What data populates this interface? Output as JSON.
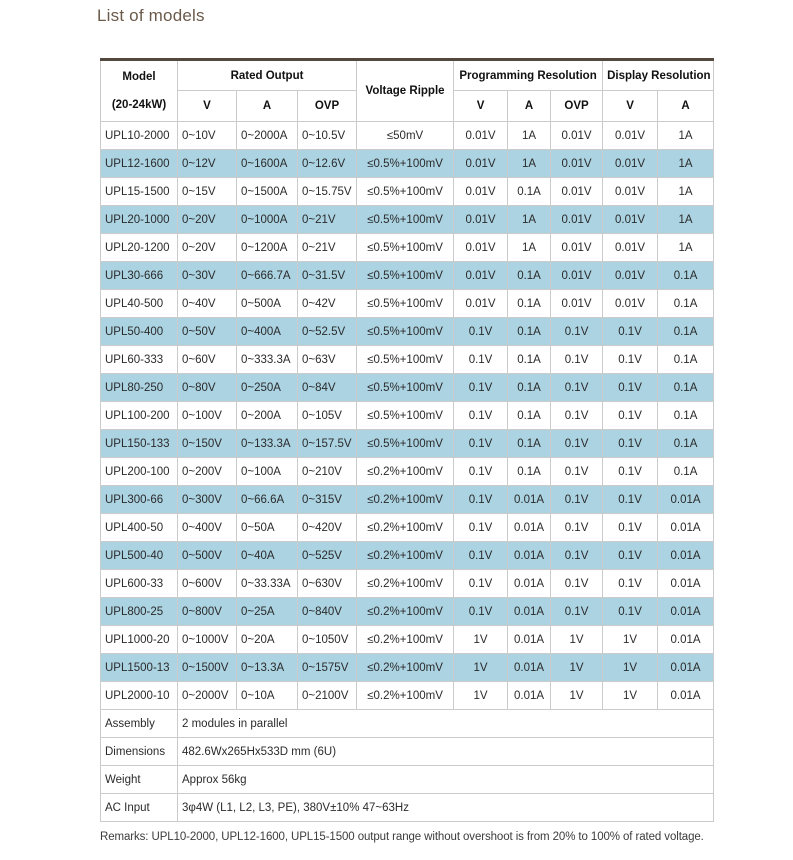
{
  "page": {
    "title": "List of models",
    "remarks": "Remarks: UPL10-2000, UPL12-1600, UPL15-1500 output range without overshoot is from 20% to 100% of rated voltage."
  },
  "colors": {
    "accent_row": "#abd3e2",
    "title": "#6b5a4a",
    "table_top_border": "#52483e",
    "cell_border": "#cbcbcb"
  },
  "table": {
    "header": {
      "model_line1": "Model",
      "model_line2": "(20-24kW)",
      "groups": [
        {
          "label": "Rated Output"
        },
        {
          "label": "Voltage Ripple"
        },
        {
          "label": "Programming Resolution"
        },
        {
          "label": "Display Resolution"
        }
      ],
      "subheaders": [
        "V",
        "A",
        "OVP",
        "V",
        "A",
        "OVP",
        "V",
        "A"
      ]
    },
    "rows": [
      {
        "model": "UPL10-2000",
        "v": "0~10V",
        "a": "0~2000A",
        "ovp": "0~10.5V",
        "ripple": "≤50mV",
        "pv": "0.01V",
        "pa": "1A",
        "povp": "0.01V",
        "dv": "0.01V",
        "da": "1A",
        "highlight": false
      },
      {
        "model": "UPL12-1600",
        "v": "0~12V",
        "a": "0~1600A",
        "ovp": "0~12.6V",
        "ripple": "≤0.5%+100mV",
        "pv": "0.01V",
        "pa": "1A",
        "povp": "0.01V",
        "dv": "0.01V",
        "da": "1A",
        "highlight": true
      },
      {
        "model": "UPL15-1500",
        "v": "0~15V",
        "a": "0~1500A",
        "ovp": "0~15.75V",
        "ripple": "≤0.5%+100mV",
        "pv": "0.01V",
        "pa": "0.1A",
        "povp": "0.01V",
        "dv": "0.01V",
        "da": "1A",
        "highlight": false
      },
      {
        "model": "UPL20-1000",
        "v": "0~20V",
        "a": "0~1000A",
        "ovp": "0~21V",
        "ripple": "≤0.5%+100mV",
        "pv": "0.01V",
        "pa": "1A",
        "povp": "0.01V",
        "dv": "0.01V",
        "da": "1A",
        "highlight": true
      },
      {
        "model": "UPL20-1200",
        "v": "0~20V",
        "a": "0~1200A",
        "ovp": "0~21V",
        "ripple": "≤0.5%+100mV",
        "pv": "0.01V",
        "pa": "1A",
        "povp": "0.01V",
        "dv": "0.01V",
        "da": "1A",
        "highlight": false
      },
      {
        "model": "UPL30-666",
        "v": "0~30V",
        "a": "0~666.7A",
        "ovp": "0~31.5V",
        "ripple": "≤0.5%+100mV",
        "pv": "0.01V",
        "pa": "0.1A",
        "povp": "0.01V",
        "dv": "0.01V",
        "da": "0.1A",
        "highlight": true
      },
      {
        "model": "UPL40-500",
        "v": "0~40V",
        "a": "0~500A",
        "ovp": "0~42V",
        "ripple": "≤0.5%+100mV",
        "pv": "0.01V",
        "pa": "0.1A",
        "povp": "0.01V",
        "dv": "0.01V",
        "da": "0.1A",
        "highlight": false
      },
      {
        "model": "UPL50-400",
        "v": "0~50V",
        "a": "0~400A",
        "ovp": "0~52.5V",
        "ripple": "≤0.5%+100mV",
        "pv": "0.1V",
        "pa": "0.1A",
        "povp": "0.1V",
        "dv": "0.1V",
        "da": "0.1A",
        "highlight": true
      },
      {
        "model": "UPL60-333",
        "v": "0~60V",
        "a": "0~333.3A",
        "ovp": "0~63V",
        "ripple": "≤0.5%+100mV",
        "pv": "0.1V",
        "pa": "0.1A",
        "povp": "0.1V",
        "dv": "0.1V",
        "da": "0.1A",
        "highlight": false
      },
      {
        "model": "UPL80-250",
        "v": "0~80V",
        "a": "0~250A",
        "ovp": "0~84V",
        "ripple": "≤0.5%+100mV",
        "pv": "0.1V",
        "pa": "0.1A",
        "povp": "0.1V",
        "dv": "0.1V",
        "da": "0.1A",
        "highlight": true
      },
      {
        "model": "UPL100-200",
        "v": "0~100V",
        "a": "0~200A",
        "ovp": "0~105V",
        "ripple": "≤0.5%+100mV",
        "pv": "0.1V",
        "pa": "0.1A",
        "povp": "0.1V",
        "dv": "0.1V",
        "da": "0.1A",
        "highlight": false
      },
      {
        "model": "UPL150-133",
        "v": "0~150V",
        "a": "0~133.3A",
        "ovp": "0~157.5V",
        "ripple": "≤0.5%+100mV",
        "pv": "0.1V",
        "pa": "0.1A",
        "povp": "0.1V",
        "dv": "0.1V",
        "da": "0.1A",
        "highlight": true
      },
      {
        "model": "UPL200-100",
        "v": "0~200V",
        "a": "0~100A",
        "ovp": "0~210V",
        "ripple": "≤0.2%+100mV",
        "pv": "0.1V",
        "pa": "0.1A",
        "povp": "0.1V",
        "dv": "0.1V",
        "da": "0.1A",
        "highlight": false
      },
      {
        "model": "UPL300-66",
        "v": "0~300V",
        "a": "0~66.6A",
        "ovp": "0~315V",
        "ripple": "≤0.2%+100mV",
        "pv": "0.1V",
        "pa": "0.01A",
        "povp": "0.1V",
        "dv": "0.1V",
        "da": "0.01A",
        "highlight": true
      },
      {
        "model": "UPL400-50",
        "v": "0~400V",
        "a": "0~50A",
        "ovp": "0~420V",
        "ripple": "≤0.2%+100mV",
        "pv": "0.1V",
        "pa": "0.01A",
        "povp": "0.1V",
        "dv": "0.1V",
        "da": "0.01A",
        "highlight": false
      },
      {
        "model": "UPL500-40",
        "v": "0~500V",
        "a": "0~40A",
        "ovp": "0~525V",
        "ripple": "≤0.2%+100mV",
        "pv": "0.1V",
        "pa": "0.01A",
        "povp": "0.1V",
        "dv": "0.1V",
        "da": "0.01A",
        "highlight": true
      },
      {
        "model": "UPL600-33",
        "v": "0~600V",
        "a": "0~33.33A",
        "ovp": "0~630V",
        "ripple": "≤0.2%+100mV",
        "pv": "0.1V",
        "pa": "0.01A",
        "povp": "0.1V",
        "dv": "0.1V",
        "da": "0.01A",
        "highlight": false
      },
      {
        "model": "UPL800-25",
        "v": "0~800V",
        "a": "0~25A",
        "ovp": "0~840V",
        "ripple": "≤0.2%+100mV",
        "pv": "0.1V",
        "pa": "0.01A",
        "povp": "0.1V",
        "dv": "0.1V",
        "da": "0.01A",
        "highlight": true
      },
      {
        "model": "UPL1000-20",
        "v": "0~1000V",
        "a": "0~20A",
        "ovp": "0~1050V",
        "ripple": "≤0.2%+100mV",
        "pv": "1V",
        "pa": "0.01A",
        "povp": "1V",
        "dv": "1V",
        "da": "0.01A",
        "highlight": false
      },
      {
        "model": "UPL1500-13",
        "v": "0~1500V",
        "a": "0~13.3A",
        "ovp": "0~1575V",
        "ripple": "≤0.2%+100mV",
        "pv": "1V",
        "pa": "0.01A",
        "povp": "1V",
        "dv": "1V",
        "da": "0.01A",
        "highlight": true
      },
      {
        "model": "UPL2000-10",
        "v": "0~2000V",
        "a": "0~10A",
        "ovp": "0~2100V",
        "ripple": "≤0.2%+100mV",
        "pv": "1V",
        "pa": "0.01A",
        "povp": "1V",
        "dv": "1V",
        "da": "0.01A",
        "highlight": false
      }
    ],
    "footer_rows": [
      {
        "label": "Assembly",
        "value": "2 modules in parallel"
      },
      {
        "label": "Dimensions",
        "value": "482.6Wx265Hx533D mm (6U)"
      },
      {
        "label": "Weight",
        "value": "Approx 56kg"
      },
      {
        "label": "AC Input",
        "value": "3φ4W (L1, L2, L3, PE), 380V±10% 47~63Hz"
      }
    ]
  }
}
